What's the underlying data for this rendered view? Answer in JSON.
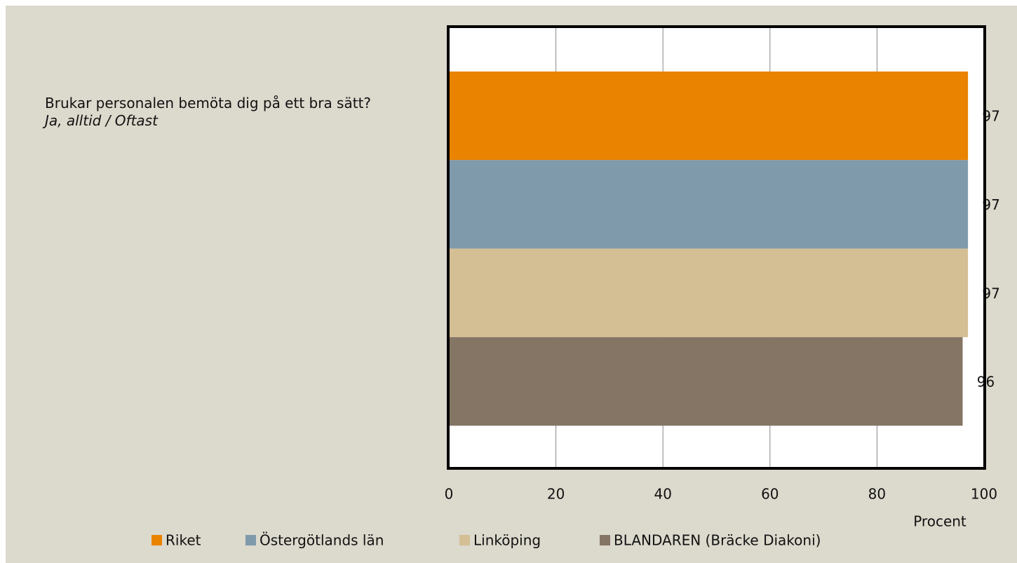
{
  "chart_data": {
    "type": "hbar",
    "title": "Brukar personalen bemöta dig på ett bra sätt?",
    "subtitle": "Ja, alltid / Oftast",
    "xlabel": "Procent",
    "series": [
      {
        "name": "Riket",
        "color": "#e98300",
        "values": [
          97
        ]
      },
      {
        "name": "Östergötlands län",
        "color": "#7f9aab",
        "values": [
          97
        ]
      },
      {
        "name": "Linköping",
        "color": "#d4be94",
        "values": [
          97
        ]
      },
      {
        "name": "BLANDAREN (Bräcke Diakoni)",
        "color": "#857565",
        "values": [
          96
        ]
      }
    ],
    "xlim": [
      0,
      100
    ],
    "xticks": [
      0,
      20,
      40,
      60,
      80,
      100
    ],
    "grid": true,
    "legend": "bottom"
  }
}
